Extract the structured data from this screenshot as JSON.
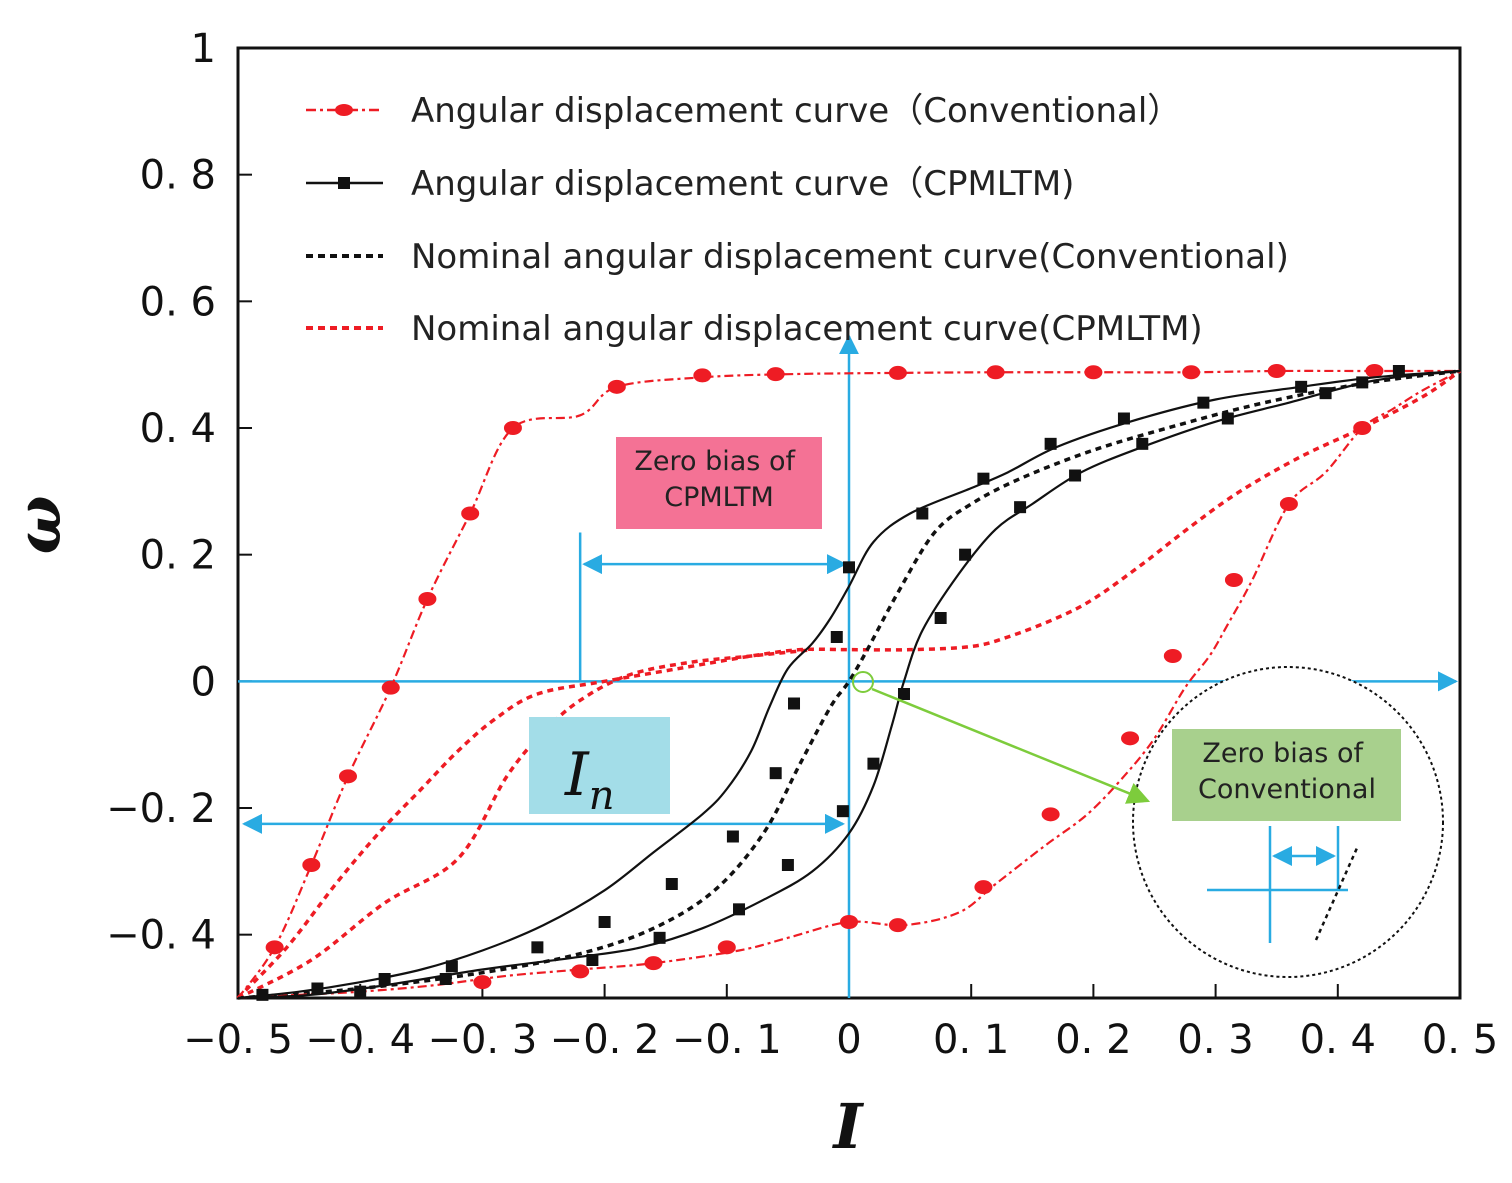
{
  "chart_data": {
    "type": "line",
    "xlabel": "I",
    "ylabel": "ω",
    "xlim": [
      -0.5,
      0.5
    ],
    "ylim": [
      -0.5,
      1.0
    ],
    "x_ticks": [
      -0.5,
      -0.4,
      -0.3,
      -0.2,
      -0.1,
      0,
      0.1,
      0.2,
      0.3,
      0.4,
      0.5
    ],
    "x_tick_labels": [
      "−0. 5",
      "−0. 4",
      "−0. 3",
      "−0. 2",
      "−0. 1",
      "0",
      "0. 1",
      "0. 2",
      "0. 3",
      "0. 4",
      "0. 5"
    ],
    "y_ticks": [
      -0.4,
      -0.2,
      0,
      0.2,
      0.4,
      0.6,
      0.8,
      1.0
    ],
    "y_tick_labels": [
      "−0. 4",
      "−0. 2",
      "0",
      "0. 2",
      "0. 4",
      "0. 6",
      "0. 8",
      "1"
    ],
    "legend_position": "top-right",
    "series": [
      {
        "name": "Angular displacement curve（Conventional）",
        "color": "#ee1c24",
        "style": "dash-dot-marker",
        "marker": "circle",
        "upper": [
          [
            -0.5,
            -0.5
          ],
          [
            -0.47,
            -0.42
          ],
          [
            -0.44,
            -0.29
          ],
          [
            -0.41,
            -0.15
          ],
          [
            -0.375,
            -0.01
          ],
          [
            -0.345,
            0.13
          ],
          [
            -0.31,
            0.265
          ],
          [
            -0.275,
            0.4
          ],
          [
            -0.22,
            0.42
          ],
          [
            -0.19,
            0.465
          ],
          [
            -0.12,
            0.48
          ],
          [
            -0.05,
            0.485
          ],
          [
            0.04,
            0.487
          ],
          [
            0.12,
            0.488
          ],
          [
            0.2,
            0.488
          ],
          [
            0.28,
            0.488
          ],
          [
            0.35,
            0.49
          ],
          [
            0.43,
            0.49
          ],
          [
            0.5,
            0.49
          ]
        ],
        "lower": [
          [
            -0.5,
            -0.5
          ],
          [
            -0.45,
            -0.495
          ],
          [
            -0.4,
            -0.49
          ],
          [
            -0.34,
            -0.48
          ],
          [
            -0.28,
            -0.465
          ],
          [
            -0.22,
            -0.455
          ],
          [
            -0.16,
            -0.445
          ],
          [
            -0.09,
            -0.425
          ],
          [
            -0.05,
            -0.405
          ],
          [
            0.0,
            -0.38
          ],
          [
            0.045,
            -0.385
          ],
          [
            0.09,
            -0.365
          ],
          [
            0.12,
            -0.32
          ],
          [
            0.16,
            -0.26
          ],
          [
            0.195,
            -0.21
          ],
          [
            0.225,
            -0.15
          ],
          [
            0.25,
            -0.09
          ],
          [
            0.275,
            -0.01
          ],
          [
            0.295,
            0.04
          ],
          [
            0.31,
            0.09
          ],
          [
            0.33,
            0.16
          ],
          [
            0.36,
            0.28
          ],
          [
            0.39,
            0.33
          ],
          [
            0.42,
            0.4
          ],
          [
            0.445,
            0.43
          ],
          [
            0.47,
            0.46
          ],
          [
            0.5,
            0.49
          ]
        ],
        "marker_points": [
          [
            -0.47,
            -0.42
          ],
          [
            -0.44,
            -0.29
          ],
          [
            -0.41,
            -0.15
          ],
          [
            -0.375,
            -0.01
          ],
          [
            -0.345,
            0.13
          ],
          [
            -0.31,
            0.265
          ],
          [
            -0.275,
            0.4
          ],
          [
            -0.19,
            0.465
          ],
          [
            -0.12,
            0.483
          ],
          [
            -0.06,
            0.485
          ],
          [
            0.04,
            0.487
          ],
          [
            0.12,
            0.488
          ],
          [
            0.2,
            0.488
          ],
          [
            0.28,
            0.488
          ],
          [
            0.35,
            0.49
          ],
          [
            0.43,
            0.49
          ],
          [
            -0.3,
            -0.475
          ],
          [
            -0.22,
            -0.458
          ],
          [
            -0.16,
            -0.445
          ],
          [
            -0.1,
            -0.42
          ],
          [
            0.0,
            -0.38
          ],
          [
            0.04,
            -0.385
          ],
          [
            0.11,
            -0.325
          ],
          [
            0.165,
            -0.21
          ],
          [
            0.23,
            -0.09
          ],
          [
            0.265,
            0.04
          ],
          [
            0.315,
            0.16
          ],
          [
            0.36,
            0.28
          ],
          [
            0.42,
            0.4
          ]
        ]
      },
      {
        "name": "Angular displacement curve（CPMLTM)",
        "color": "#111111",
        "style": "solid-marker",
        "marker": "square",
        "upper": [
          [
            -0.5,
            -0.5
          ],
          [
            -0.45,
            -0.49
          ],
          [
            -0.4,
            -0.475
          ],
          [
            -0.35,
            -0.455
          ],
          [
            -0.3,
            -0.425
          ],
          [
            -0.25,
            -0.385
          ],
          [
            -0.2,
            -0.33
          ],
          [
            -0.16,
            -0.27
          ],
          [
            -0.12,
            -0.21
          ],
          [
            -0.1,
            -0.17
          ],
          [
            -0.08,
            -0.11
          ],
          [
            -0.065,
            -0.04
          ],
          [
            -0.05,
            0.02
          ],
          [
            -0.03,
            0.06
          ],
          [
            -0.015,
            0.1
          ],
          [
            0.0,
            0.15
          ],
          [
            0.02,
            0.22
          ],
          [
            0.05,
            0.265
          ],
          [
            0.1,
            0.305
          ],
          [
            0.13,
            0.33
          ],
          [
            0.17,
            0.37
          ],
          [
            0.23,
            0.41
          ],
          [
            0.3,
            0.445
          ],
          [
            0.37,
            0.465
          ],
          [
            0.43,
            0.48
          ],
          [
            0.5,
            0.49
          ]
        ],
        "lower": [
          [
            -0.5,
            -0.5
          ],
          [
            -0.44,
            -0.495
          ],
          [
            -0.38,
            -0.48
          ],
          [
            -0.3,
            -0.455
          ],
          [
            -0.22,
            -0.435
          ],
          [
            -0.17,
            -0.42
          ],
          [
            -0.12,
            -0.39
          ],
          [
            -0.07,
            -0.345
          ],
          [
            -0.03,
            -0.3
          ],
          [
            0.0,
            -0.24
          ],
          [
            0.02,
            -0.165
          ],
          [
            0.035,
            -0.07
          ],
          [
            0.045,
            0.0
          ],
          [
            0.06,
            0.08
          ],
          [
            0.09,
            0.17
          ],
          [
            0.12,
            0.24
          ],
          [
            0.15,
            0.28
          ],
          [
            0.19,
            0.33
          ],
          [
            0.24,
            0.37
          ],
          [
            0.3,
            0.41
          ],
          [
            0.36,
            0.44
          ],
          [
            0.43,
            0.475
          ],
          [
            0.5,
            0.49
          ]
        ],
        "marker_points": [
          [
            -0.48,
            -0.495
          ],
          [
            -0.435,
            -0.485
          ],
          [
            -0.38,
            -0.47
          ],
          [
            -0.325,
            -0.45
          ],
          [
            -0.255,
            -0.42
          ],
          [
            -0.2,
            -0.38
          ],
          [
            -0.145,
            -0.32
          ],
          [
            -0.095,
            -0.245
          ],
          [
            -0.06,
            -0.145
          ],
          [
            -0.045,
            -0.035
          ],
          [
            -0.01,
            0.07
          ],
          [
            0.0,
            0.18
          ],
          [
            0.06,
            0.265
          ],
          [
            0.11,
            0.32
          ],
          [
            0.165,
            0.375
          ],
          [
            0.225,
            0.415
          ],
          [
            0.29,
            0.44
          ],
          [
            0.37,
            0.465
          ],
          [
            0.45,
            0.49
          ],
          [
            -0.4,
            -0.49
          ],
          [
            -0.33,
            -0.47
          ],
          [
            -0.21,
            -0.44
          ],
          [
            -0.155,
            -0.405
          ],
          [
            -0.09,
            -0.36
          ],
          [
            -0.05,
            -0.29
          ],
          [
            -0.005,
            -0.205
          ],
          [
            0.02,
            -0.13
          ],
          [
            0.045,
            -0.02
          ],
          [
            0.075,
            0.1
          ],
          [
            0.095,
            0.2
          ],
          [
            0.14,
            0.275
          ],
          [
            0.185,
            0.325
          ],
          [
            0.24,
            0.375
          ],
          [
            0.31,
            0.415
          ],
          [
            0.39,
            0.455
          ],
          [
            0.42,
            0.472
          ]
        ]
      },
      {
        "name": "Nominal angular displacement curve(Conventional)",
        "color": "#111111",
        "style": "dotted",
        "points": [
          [
            -0.5,
            -0.5
          ],
          [
            -0.4,
            -0.485
          ],
          [
            -0.3,
            -0.46
          ],
          [
            -0.22,
            -0.43
          ],
          [
            -0.16,
            -0.39
          ],
          [
            -0.11,
            -0.33
          ],
          [
            -0.07,
            -0.24
          ],
          [
            -0.04,
            -0.13
          ],
          [
            -0.015,
            -0.04
          ],
          [
            0.0,
            0.0
          ],
          [
            0.015,
            0.05
          ],
          [
            0.04,
            0.14
          ],
          [
            0.07,
            0.235
          ],
          [
            0.1,
            0.28
          ],
          [
            0.14,
            0.32
          ],
          [
            0.2,
            0.365
          ],
          [
            0.27,
            0.405
          ],
          [
            0.34,
            0.44
          ],
          [
            0.42,
            0.47
          ],
          [
            0.5,
            0.49
          ]
        ]
      },
      {
        "name": "Nominal angular displacement curve(CPMLTM)",
        "color": "#ee1c24",
        "style": "dotted",
        "upper": [
          [
            -0.5,
            -0.5
          ],
          [
            -0.46,
            -0.42
          ],
          [
            -0.42,
            -0.32
          ],
          [
            -0.385,
            -0.24
          ],
          [
            -0.35,
            -0.17
          ],
          [
            -0.32,
            -0.11
          ],
          [
            -0.29,
            -0.06
          ],
          [
            -0.255,
            -0.02
          ],
          [
            -0.2,
            0.0
          ],
          [
            -0.14,
            0.02
          ],
          [
            -0.08,
            0.04
          ],
          [
            -0.04,
            0.05
          ],
          [
            0.0,
            0.05
          ],
          [
            0.05,
            0.05
          ],
          [
            0.1,
            0.055
          ],
          [
            0.13,
            0.07
          ],
          [
            0.17,
            0.1
          ],
          [
            0.2,
            0.13
          ],
          [
            0.24,
            0.185
          ],
          [
            0.28,
            0.245
          ],
          [
            0.32,
            0.3
          ],
          [
            0.37,
            0.355
          ],
          [
            0.42,
            0.4
          ],
          [
            0.47,
            0.45
          ],
          [
            0.5,
            0.49
          ]
        ],
        "lower": [
          [
            -0.5,
            -0.5
          ],
          [
            -0.44,
            -0.44
          ],
          [
            -0.38,
            -0.35
          ],
          [
            -0.32,
            -0.28
          ],
          [
            -0.28,
            -0.15
          ],
          [
            -0.25,
            -0.08
          ],
          [
            -0.22,
            -0.03
          ],
          [
            -0.18,
            0.01
          ],
          [
            -0.13,
            0.03
          ],
          [
            -0.08,
            0.04
          ],
          [
            -0.03,
            0.05
          ]
        ]
      }
    ],
    "annotations": {
      "zero_bias_cpmltm": "Zero bias of CPMLTM",
      "zero_bias_conventional": "Zero bias of Conventional",
      "in_label": "I",
      "in_subscript": "n",
      "in_level": -0.225,
      "cpmltm_bias_left": -0.22,
      "cpmltm_bias_right": 0.0,
      "cpmltm_bias_level": 0.185
    },
    "colors": {
      "annotation_line": "#29abe2",
      "cpmltm_box": "#f47295",
      "conventional_box": "#a8d08d",
      "in_box": "#a3dde8",
      "zoom_pointer": "#7dcc3c"
    }
  }
}
